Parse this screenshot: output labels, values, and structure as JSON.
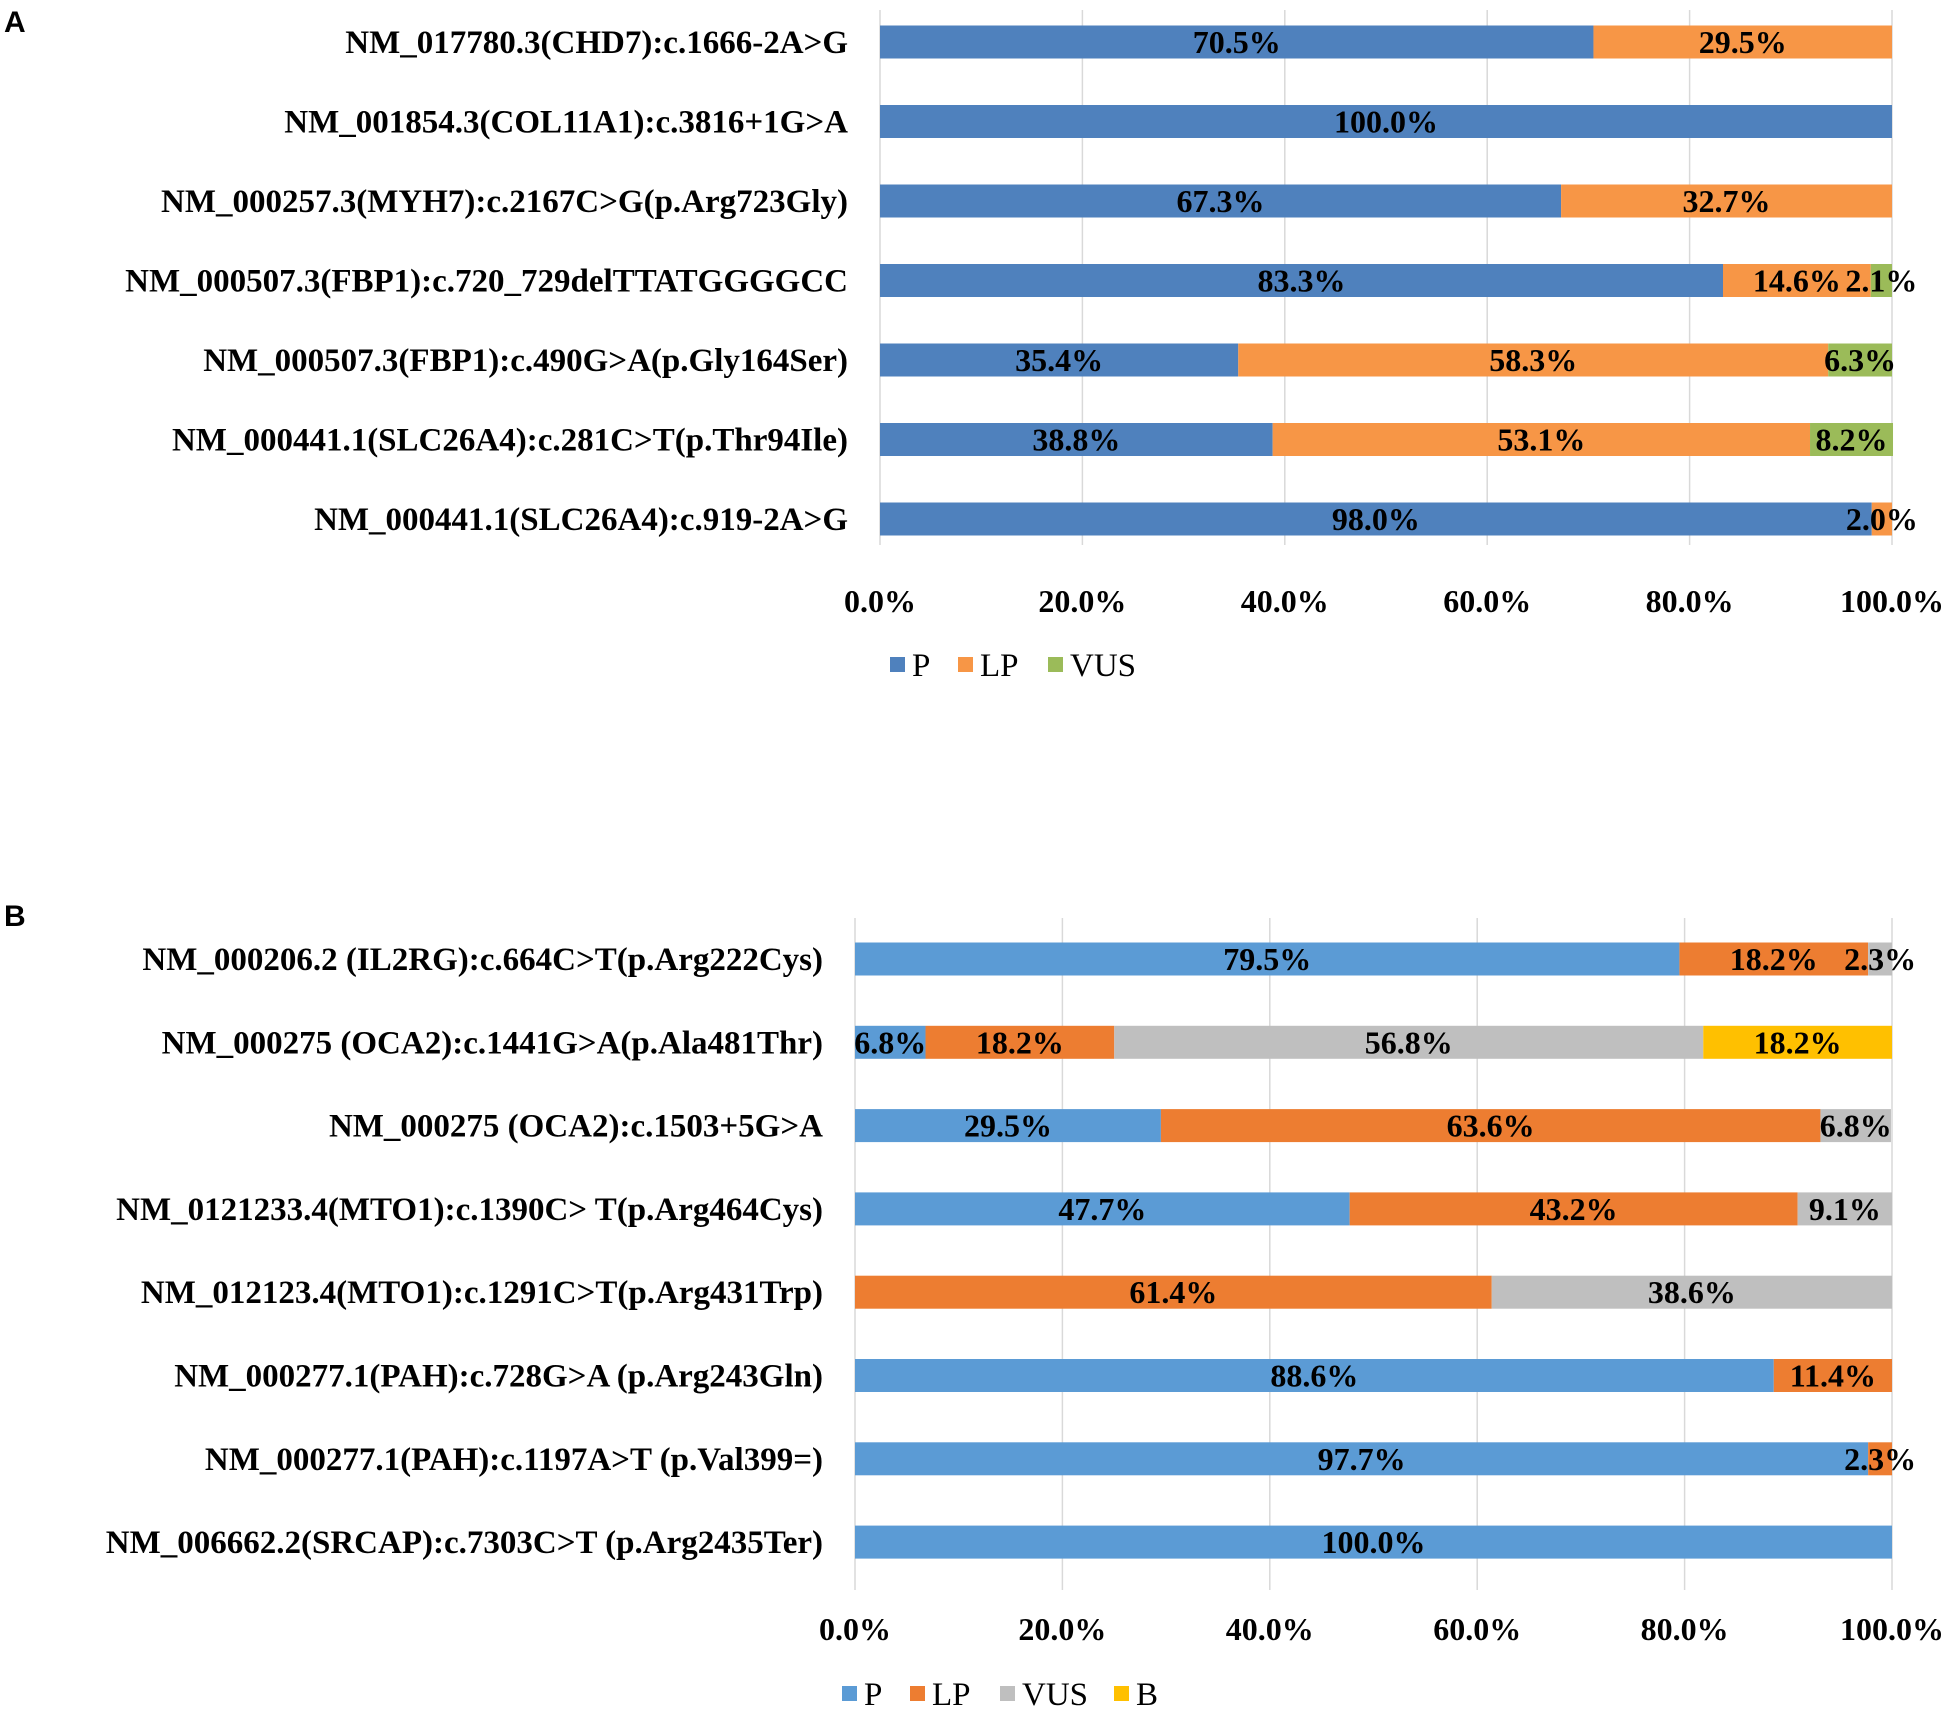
{
  "chart_data": [
    {
      "panel": "A",
      "type": "bar",
      "orientation": "horizontal",
      "stacked": true,
      "categories": [
        "NM_017780.3(CHD7):c.1666-2A>G",
        "NM_001854.3(COL11A1):c.3816+1G>A",
        "NM_000257.3(MYH7):c.2167C>G(p.Arg723Gly)",
        "NM_000507.3(FBP1):c.720_729delTTATGGGGCC",
        "NM_000507.3(FBP1):c.490G>A(p.Gly164Ser)",
        "NM_000441.1(SLC26A4):c.281C>T(p.Thr94Ile)",
        "NM_000441.1(SLC26A4):c.919-2A>G"
      ],
      "series": [
        {
          "name": "P",
          "color": "#4f81bd",
          "values": [
            70.5,
            100.0,
            67.3,
            83.3,
            35.4,
            38.8,
            98.0
          ],
          "labels": [
            "70.5%",
            "100.0%",
            "67.3%",
            "83.3%",
            "35.4%",
            "38.8%",
            "98.0%"
          ]
        },
        {
          "name": "LP",
          "color": "#f79646",
          "values": [
            29.5,
            0,
            32.7,
            14.6,
            58.3,
            53.1,
            2.0
          ],
          "labels": [
            "29.5%",
            "",
            "32.7%",
            "14.6%",
            "58.3%",
            "53.1%",
            "2.0%"
          ]
        },
        {
          "name": "VUS",
          "color": "#9bbb59",
          "values": [
            0,
            0,
            0,
            2.1,
            6.3,
            8.2,
            0
          ],
          "labels": [
            "",
            "",
            "",
            "2.1%",
            "6.3%",
            "8.2%",
            ""
          ]
        }
      ],
      "xlim": [
        0,
        100
      ],
      "xticks": [
        "0.0%",
        "20.0%",
        "40.0%",
        "60.0%",
        "80.0%",
        "100.0%"
      ],
      "legend": "bottom"
    },
    {
      "panel": "B",
      "type": "bar",
      "orientation": "horizontal",
      "stacked": true,
      "categories": [
        "NM_000206.2 (IL2RG):c.664C>T(p.Arg222Cys)",
        "NM_000275 (OCA2):c.1441G>A(p.Ala481Thr)",
        "NM_000275 (OCA2):c.1503+5G>A",
        "NM_0121233.4(MTO1):c.1390C> T(p.Arg464Cys)",
        "NM_012123.4(MTO1):c.1291C>T(p.Arg431Trp)",
        "NM_000277.1(PAH):c.728G>A (p.Arg243Gln)",
        "NM_000277.1(PAH):c.1197A>T (p.Val399=)",
        "NM_006662.2(SRCAP):c.7303C>T (p.Arg2435Ter)"
      ],
      "series": [
        {
          "name": "P",
          "color": "#5b9bd5",
          "values": [
            79.5,
            6.8,
            29.5,
            47.7,
            0,
            88.6,
            97.7,
            100.0
          ],
          "labels": [
            "79.5%",
            "6.8%",
            "29.5%",
            "47.7%",
            "",
            "88.6%",
            "97.7%",
            "100.0%"
          ]
        },
        {
          "name": "LP",
          "color": "#ed7d31",
          "values": [
            18.2,
            18.2,
            63.6,
            43.2,
            61.4,
            11.4,
            2.3,
            0
          ],
          "labels": [
            "18.2%",
            "18.2%",
            "63.6%",
            "43.2%",
            "61.4%",
            "11.4%",
            "2.3%",
            ""
          ]
        },
        {
          "name": "VUS",
          "color": "#bfbfbf",
          "values": [
            2.3,
            56.8,
            6.8,
            9.1,
            38.6,
            0,
            0,
            0
          ],
          "labels": [
            "2.3%",
            "56.8%",
            "6.8%",
            "9.1%",
            "38.6%",
            "",
            "",
            ""
          ]
        },
        {
          "name": "B",
          "color": "#ffc000",
          "values": [
            0,
            18.2,
            0,
            0,
            0,
            0,
            0,
            0
          ],
          "labels": [
            "",
            "18.2%",
            "",
            "",
            "",
            "",
            "",
            ""
          ]
        }
      ],
      "xlim": [
        0,
        100
      ],
      "xticks": [
        "0.0%",
        "20.0%",
        "40.0%",
        "60.0%",
        "80.0%",
        "100.0%"
      ],
      "legend": "bottom"
    }
  ]
}
